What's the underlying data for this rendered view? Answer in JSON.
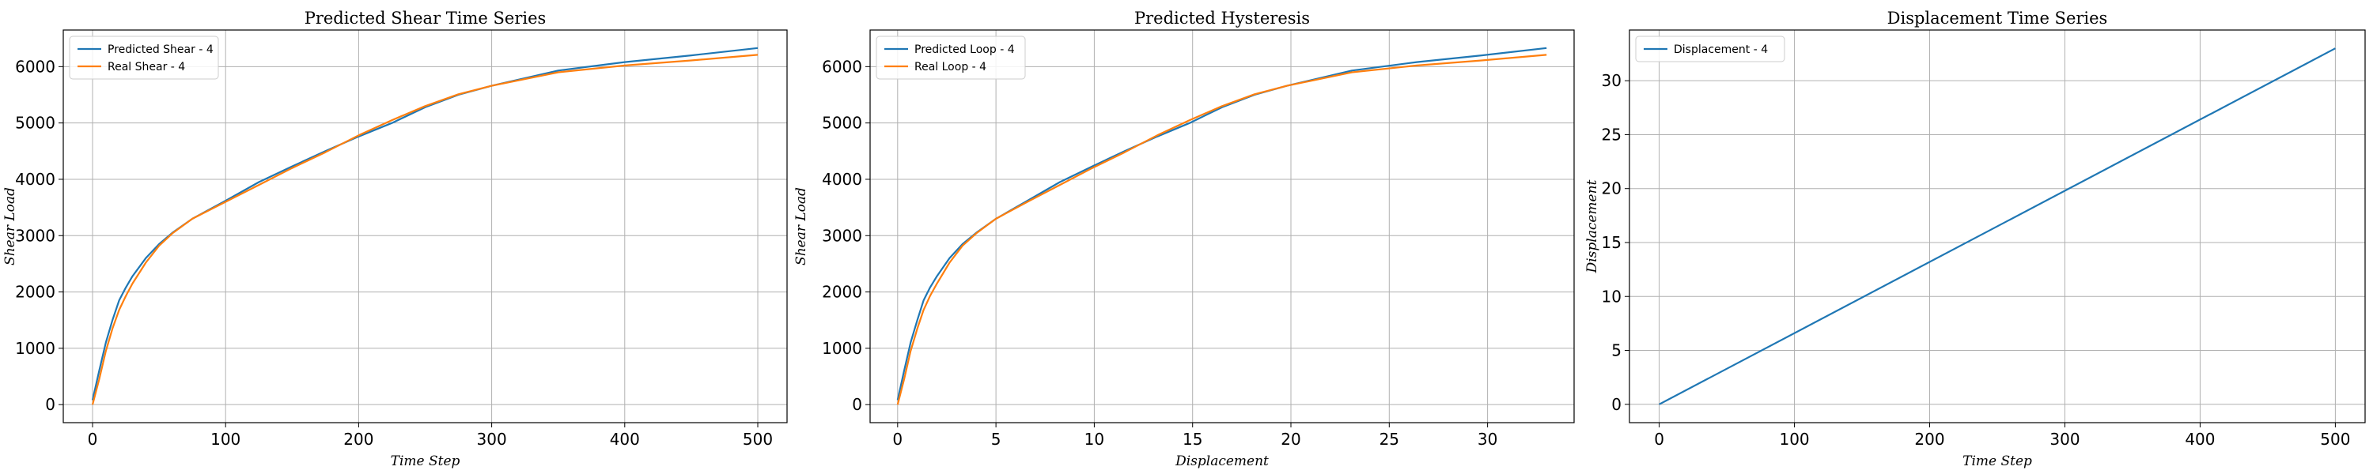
{
  "chart_data": [
    {
      "type": "line",
      "title": "Predicted Shear Time Series",
      "xlabel": "Time Step",
      "ylabel": "Shear Load",
      "xlim": [
        -22,
        522
      ],
      "ylim": [
        -320,
        6650
      ],
      "xticks": [
        0,
        100,
        200,
        300,
        400,
        500
      ],
      "yticks": [
        0,
        1000,
        2000,
        3000,
        4000,
        5000,
        6000
      ],
      "grid": true,
      "legend": "top-left",
      "series": [
        {
          "name": "Predicted Shear - 4",
          "color": "#1f77b4",
          "x": [
            0,
            5,
            10,
            15,
            20,
            25,
            30,
            40,
            50,
            60,
            75,
            100,
            125,
            150,
            175,
            200,
            225,
            250,
            275,
            300,
            350,
            400,
            450,
            500
          ],
          "y": [
            80,
            600,
            1100,
            1500,
            1850,
            2080,
            2280,
            2600,
            2850,
            3050,
            3300,
            3620,
            3950,
            4230,
            4500,
            4760,
            5000,
            5280,
            5500,
            5660,
            5930,
            6080,
            6200,
            6330
          ]
        },
        {
          "name": "Real Shear - 4",
          "color": "#ff7f0e",
          "x": [
            0,
            5,
            10,
            15,
            20,
            25,
            30,
            40,
            50,
            60,
            75,
            100,
            125,
            150,
            175,
            200,
            225,
            250,
            275,
            300,
            350,
            400,
            450,
            500
          ],
          "y": [
            0,
            450,
            950,
            1350,
            1680,
            1930,
            2150,
            2520,
            2820,
            3040,
            3300,
            3600,
            3900,
            4200,
            4480,
            4780,
            5050,
            5300,
            5510,
            5660,
            5900,
            6020,
            6110,
            6210
          ]
        }
      ]
    },
    {
      "type": "line",
      "title": "Predicted Hysteresis",
      "xlabel": "Displacement",
      "ylabel": "Shear Load",
      "xlim": [
        -1.4,
        34.4
      ],
      "ylim": [
        -320,
        6650
      ],
      "xticks": [
        0,
        5,
        10,
        15,
        20,
        25,
        30
      ],
      "yticks": [
        0,
        1000,
        2000,
        3000,
        4000,
        5000,
        6000
      ],
      "grid": true,
      "legend": "top-left",
      "series": [
        {
          "name": "Predicted Loop - 4",
          "color": "#1f77b4",
          "x": [
            0,
            0.33,
            0.66,
            1,
            1.32,
            1.65,
            2,
            2.64,
            3.3,
            4,
            5,
            6.6,
            8.25,
            9.9,
            11.55,
            13.2,
            14.85,
            16.5,
            18.15,
            19.8,
            23.1,
            26.4,
            29.7,
            33
          ],
          "y": [
            80,
            600,
            1100,
            1500,
            1850,
            2080,
            2280,
            2600,
            2850,
            3050,
            3300,
            3620,
            3950,
            4230,
            4500,
            4760,
            5000,
            5280,
            5500,
            5660,
            5930,
            6080,
            6200,
            6330
          ]
        },
        {
          "name": "Real Loop - 4",
          "color": "#ff7f0e",
          "x": [
            0,
            0.33,
            0.66,
            1,
            1.32,
            1.65,
            2,
            2.64,
            3.3,
            4,
            5,
            6.6,
            8.25,
            9.9,
            11.55,
            13.2,
            14.85,
            16.5,
            18.15,
            19.8,
            23.1,
            26.4,
            29.7,
            33
          ],
          "y": [
            0,
            450,
            950,
            1350,
            1680,
            1930,
            2150,
            2520,
            2820,
            3040,
            3300,
            3600,
            3900,
            4200,
            4480,
            4780,
            5050,
            5300,
            5510,
            5660,
            5900,
            6020,
            6110,
            6210
          ]
        }
      ]
    },
    {
      "type": "line",
      "title": "Displacement Time Series",
      "xlabel": "Time Step",
      "ylabel": "Displacement",
      "xlim": [
        -22,
        522
      ],
      "ylim": [
        -1.7,
        34.7
      ],
      "xticks": [
        0,
        100,
        200,
        300,
        400,
        500
      ],
      "yticks": [
        0,
        5,
        10,
        15,
        20,
        25,
        30
      ],
      "grid": true,
      "legend": "top-left",
      "series": [
        {
          "name": "Displacement - 4",
          "color": "#1f77b4",
          "x": [
            0,
            500
          ],
          "y": [
            0,
            33
          ]
        }
      ]
    }
  ]
}
